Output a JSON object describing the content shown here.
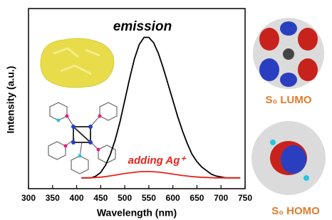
{
  "chart_data": {
    "type": "line",
    "x": [
      410,
      420,
      430,
      440,
      450,
      460,
      470,
      480,
      490,
      500,
      510,
      520,
      530,
      540,
      550,
      560,
      570,
      580,
      590,
      600,
      610,
      620,
      630,
      640,
      650,
      660,
      670,
      680,
      690,
      700,
      710,
      720,
      730,
      740
    ],
    "series": [
      {
        "name": "emission",
        "color": "#000000",
        "values": [
          0.06,
          0.06,
          0.06,
          0.07,
          0.09,
          0.13,
          0.19,
          0.27,
          0.37,
          0.49,
          0.61,
          0.72,
          0.8,
          0.84,
          0.84,
          0.81,
          0.75,
          0.67,
          0.58,
          0.49,
          0.4,
          0.32,
          0.25,
          0.19,
          0.15,
          0.12,
          0.1,
          0.08,
          0.07,
          0.065,
          0.06,
          0.06,
          0.06,
          0.06
        ]
      },
      {
        "name": "adding Ag⁺",
        "color": "#e8231c",
        "values": [
          0.06,
          0.06,
          0.061,
          0.062,
          0.064,
          0.067,
          0.071,
          0.075,
          0.08,
          0.084,
          0.088,
          0.091,
          0.094,
          0.095,
          0.095,
          0.094,
          0.092,
          0.089,
          0.085,
          0.081,
          0.077,
          0.073,
          0.07,
          0.067,
          0.065,
          0.063,
          0.062,
          0.061,
          0.06,
          0.06,
          0.06,
          0.06,
          0.06,
          0.06
        ]
      }
    ],
    "xlabel": "Wavelength (nm)",
    "ylabel": "Intensity (a.u.)",
    "xlim": [
      300,
      750
    ],
    "xticks": [
      300,
      350,
      400,
      450,
      500,
      550,
      600,
      650,
      700,
      750
    ],
    "ylim": [
      0,
      1
    ],
    "orbital_labels": [
      "S₀ LUMO",
      "S₀ HOMO"
    ]
  }
}
